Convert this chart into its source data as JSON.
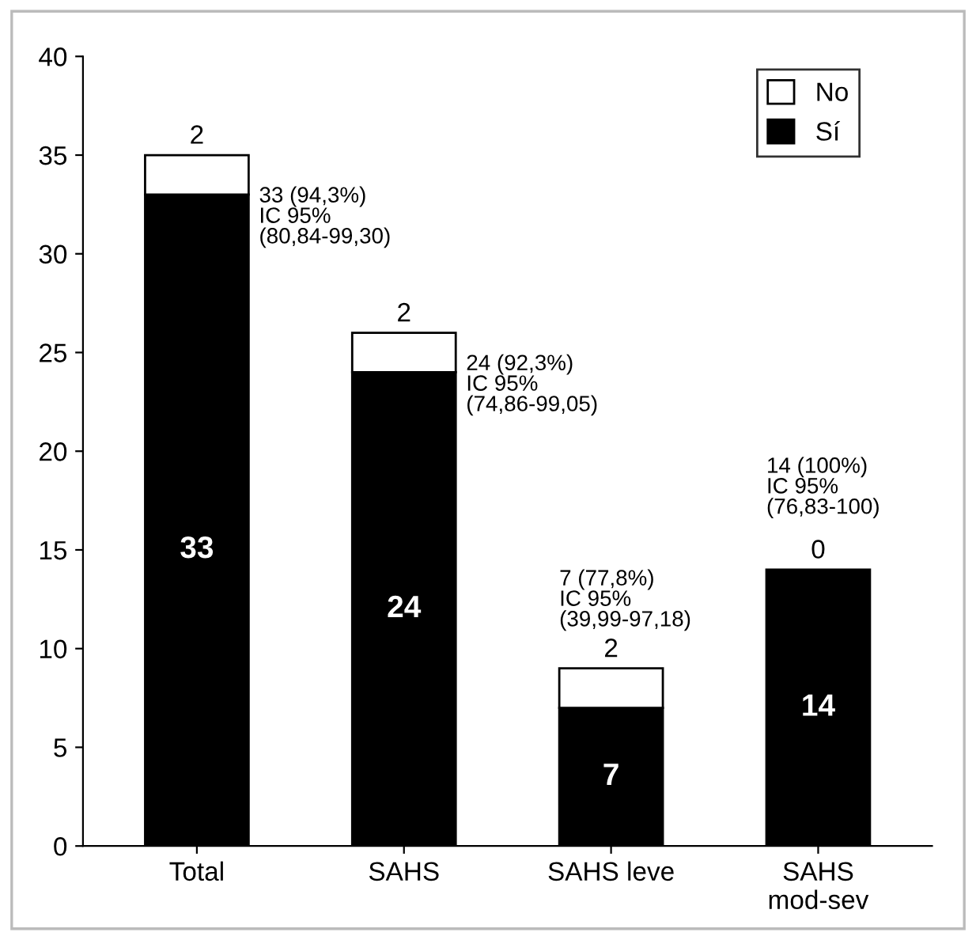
{
  "chart_data": {
    "type": "bar",
    "stacked": true,
    "categories": [
      "Total",
      "SAHS",
      "SAHS leve",
      "SAHS\nmod-sev"
    ],
    "series": [
      {
        "name": "Sí",
        "color": "#000000",
        "values": [
          33,
          24,
          7,
          14
        ],
        "value_labels": [
          "33",
          "24",
          "7",
          "14"
        ]
      },
      {
        "name": "No",
        "color": "#ffffff",
        "values": [
          2,
          2,
          2,
          0
        ],
        "value_labels": [
          "2",
          "2",
          "2",
          "0"
        ]
      }
    ],
    "ylim": [
      0,
      40
    ],
    "yticks": [
      0,
      5,
      10,
      15,
      20,
      25,
      30,
      35,
      40
    ],
    "legend": "top right",
    "grid": false,
    "annotations": [
      "33 (94,3%)\nIC 95%\n(80,84-99,30)",
      "24 (92,3%)\nIC 95%\n(74,86-99,05)",
      "7 (77,8%)\nIC 95%\n(39,99-97,18)",
      "14 (100%)\nIC 95%\n(76,83-100)"
    ]
  }
}
